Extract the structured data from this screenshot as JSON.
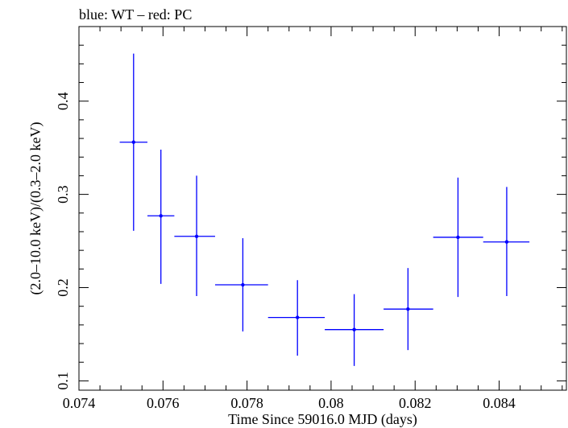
{
  "chart_data": {
    "type": "scatter",
    "title": "blue: WT – red: PC",
    "xlabel": "Time Since 59016.0 MJD (days)",
    "ylabel": "(2.0–10.0 keV)/(0.3–2.0 keV)",
    "xlim": [
      0.074,
      0.0856
    ],
    "ylim": [
      0.09,
      0.48
    ],
    "x_ticks": [
      0.074,
      0.076,
      0.078,
      0.08,
      0.082,
      0.084
    ],
    "x_tick_labels": [
      "0.074",
      "0.076",
      "0.078",
      "0.08",
      "0.082",
      "0.084"
    ],
    "y_ticks": [
      0.1,
      0.2,
      0.3,
      0.4
    ],
    "y_tick_labels": [
      "0.1",
      "0.2",
      "0.3",
      "0.4"
    ],
    "series": [
      {
        "color": "#0000ff",
        "points": [
          {
            "x": 0.0753,
            "xerr": [
              0.07497,
              0.07563
            ],
            "y": 0.356,
            "yerr": [
              0.261,
              0.451
            ]
          },
          {
            "x": 0.07595,
            "xerr": [
              0.07563,
              0.07627
            ],
            "y": 0.277,
            "yerr": [
              0.204,
              0.348
            ]
          },
          {
            "x": 0.0768,
            "xerr": [
              0.07627,
              0.07724
            ],
            "y": 0.255,
            "yerr": [
              0.191,
              0.32
            ]
          },
          {
            "x": 0.0779,
            "xerr": [
              0.07724,
              0.0785
            ],
            "y": 0.203,
            "yerr": [
              0.153,
              0.253
            ]
          },
          {
            "x": 0.0792,
            "xerr": [
              0.0785,
              0.07985
            ],
            "y": 0.168,
            "yerr": [
              0.127,
              0.208
            ]
          },
          {
            "x": 0.08055,
            "xerr": [
              0.07985,
              0.08125
            ],
            "y": 0.155,
            "yerr": [
              0.116,
              0.193
            ]
          },
          {
            "x": 0.08183,
            "xerr": [
              0.08125,
              0.08243
            ],
            "y": 0.177,
            "yerr": [
              0.133,
              0.221
            ]
          },
          {
            "x": 0.08302,
            "xerr": [
              0.08243,
              0.08362
            ],
            "y": 0.254,
            "yerr": [
              0.19,
              0.318
            ]
          },
          {
            "x": 0.08418,
            "xerr": [
              0.08362,
              0.08472
            ],
            "y": 0.249,
            "yerr": [
              0.191,
              0.308
            ]
          }
        ]
      }
    ]
  }
}
